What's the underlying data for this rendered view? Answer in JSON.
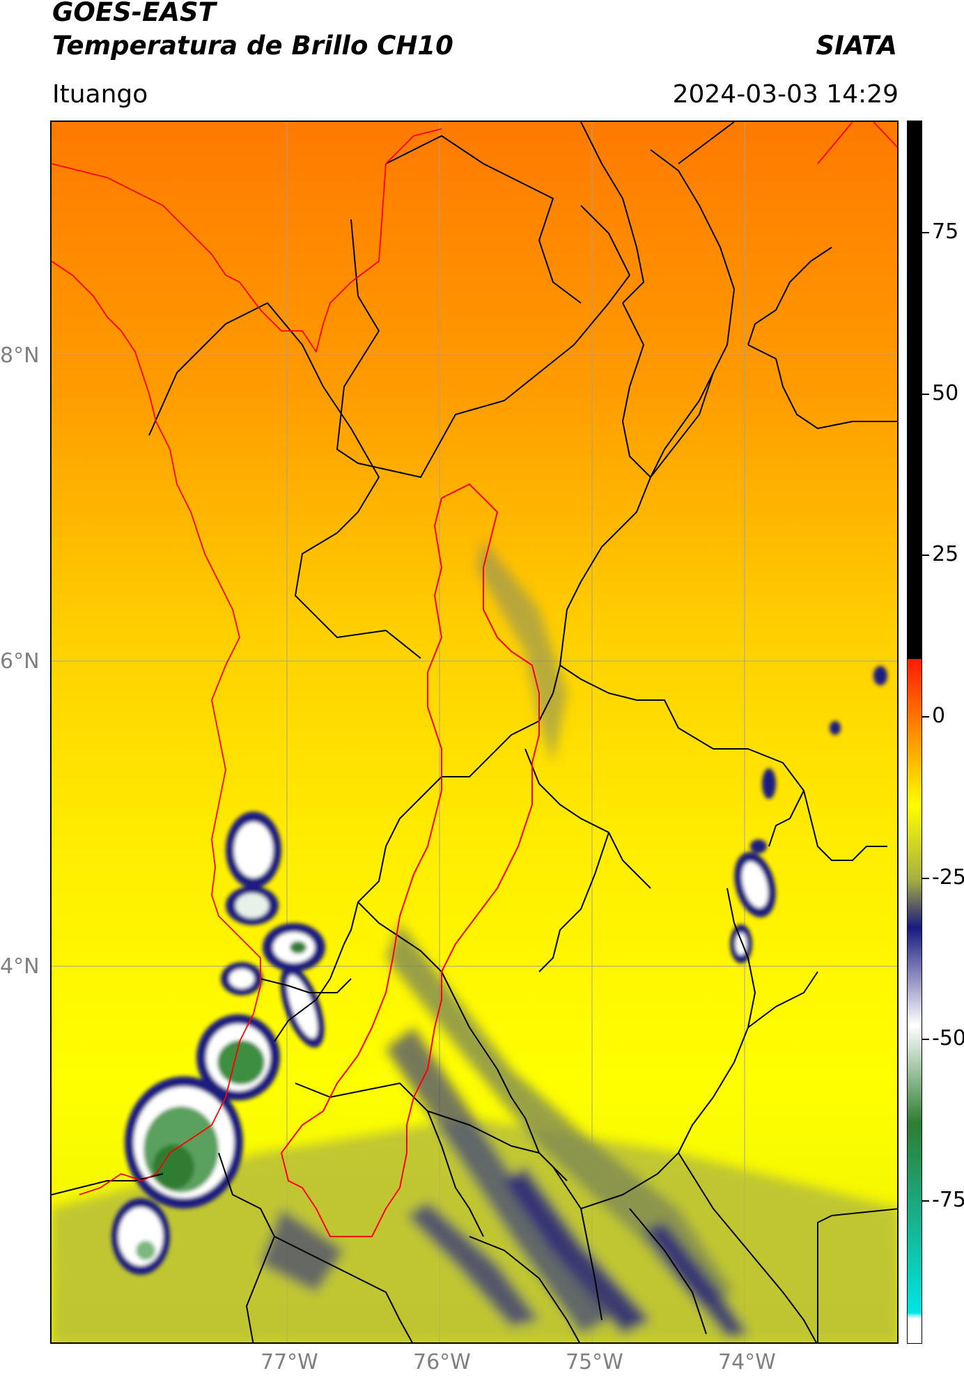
{
  "header": {
    "satellite": "GOES-EAST",
    "product": "Temperatura de Brillo CH10",
    "agency": "SIATA",
    "region": "Ituango",
    "datetime": "2024-03-03 14:29"
  },
  "map": {
    "lat_ticks": [
      "8°N",
      "6°N",
      "4°N"
    ],
    "lon_ticks": [
      "77°W",
      "76°W",
      "75°W",
      "74°W"
    ]
  },
  "colorbar": {
    "ticks": [
      "75",
      "50",
      "25",
      "0",
      "-25",
      "-50",
      "-75"
    ],
    "colors": {
      "black": "#000000",
      "red": "#ff1a00",
      "orange": "#ff8c00",
      "yellow": "#ffff00",
      "olive": "#a8b040",
      "navy": "#1a1a80",
      "white": "#ffffff",
      "green": "#2e7d32",
      "cyan": "#00e5e5"
    }
  }
}
